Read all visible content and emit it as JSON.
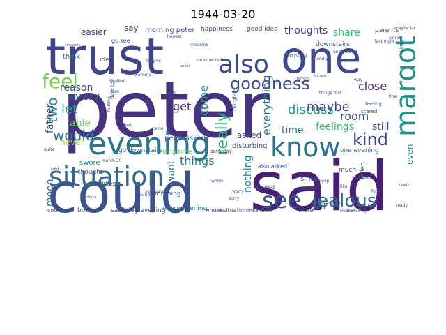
{
  "title": "1944-03-20",
  "words": [
    {
      "text": "peter",
      "color": "#46327e"
    },
    {
      "text": "said",
      "color": "#482173"
    },
    {
      "text": "could",
      "color": "#3b528b"
    },
    {
      "text": "trust",
      "color": "#414487"
    },
    {
      "text": "one",
      "color": "#3e4a89"
    },
    {
      "text": "evening",
      "color": "#2a788e"
    },
    {
      "text": "situation",
      "color": "#31688e"
    },
    {
      "text": "margot",
      "color": "#21918c"
    },
    {
      "text": "know",
      "color": "#2c728e"
    },
    {
      "text": "see",
      "color": "#3b528b"
    },
    {
      "text": "also",
      "color": "#3e4a89"
    },
    {
      "text": "jealous",
      "color": "#31688e"
    },
    {
      "text": "feel",
      "color": "#7ad151"
    },
    {
      "text": "goodness",
      "color": "#3e4a89"
    },
    {
      "text": "would",
      "color": "#2a788e"
    },
    {
      "text": "kind",
      "color": "#404688"
    },
    {
      "text": "discuss",
      "color": "#1f9e89"
    },
    {
      "text": "really",
      "color": "#2db27d"
    },
    {
      "text": "everything",
      "color": "#2a788e"
    },
    {
      "text": "maybe",
      "color": "#3e4a89"
    },
    {
      "text": "two",
      "color": "#21918c"
    },
    {
      "text": "share",
      "color": "#35b779"
    },
    {
      "text": "thoughts",
      "color": "#443983"
    },
    {
      "text": "room",
      "color": "#3b528b"
    },
    {
      "text": "let",
      "color": "#22a785"
    },
    {
      "text": "feelings",
      "color": "#35b779"
    },
    {
      "text": "things",
      "color": "#2a788e"
    },
    {
      "text": "far",
      "color": "#31688e"
    },
    {
      "text": "moon",
      "color": "#31688e"
    },
    {
      "text": "get",
      "color": "#46327e"
    },
    {
      "text": "every",
      "color": "#3b528b"
    },
    {
      "text": "reason",
      "color": "#3e4a89"
    },
    {
      "text": "close",
      "color": "#472d7b"
    },
    {
      "text": "still",
      "color": "#3b528b"
    },
    {
      "text": "time",
      "color": "#2c728e"
    },
    {
      "text": "able",
      "color": "#70cf57"
    },
    {
      "text": "come",
      "color": "#1f9e89"
    },
    {
      "text": "father",
      "color": "#3e4a89"
    },
    {
      "text": "asked",
      "color": "#3e4a89"
    },
    {
      "text": "nothing",
      "color": "#26828e"
    },
    {
      "text": "even",
      "color": "#21918c"
    },
    {
      "text": "want",
      "color": "#31688e"
    },
    {
      "text": "easier",
      "color": "#46327e"
    },
    {
      "text": "say",
      "color": "#3e4a89"
    },
    {
      "text": "never",
      "color": "#a0da39"
    },
    {
      "text": "morning peter",
      "color": "#3e4a89"
    },
    {
      "text": "peter asked",
      "color": "#3b528b"
    },
    {
      "text": "disturbing",
      "color": "#3b528b"
    },
    {
      "text": "go downstairs",
      "color": "#31688e"
    },
    {
      "text": "long time",
      "color": "#7ad151"
    },
    {
      "text": "thought",
      "color": "#3e4a89"
    },
    {
      "text": "swore",
      "color": "#26828e"
    },
    {
      "text": "morning",
      "color": "#3e4a89"
    },
    {
      "text": "bother",
      "color": "#3b528b"
    },
    {
      "text": "saturday evening",
      "color": "#414487"
    },
    {
      "text": "every evening",
      "color": "#2a788e"
    },
    {
      "text": "whole situation",
      "color": "#3e4a89"
    },
    {
      "text": "agreed",
      "color": "#3b528b"
    },
    {
      "text": "since",
      "color": "#3b528b"
    },
    {
      "text": "one evening",
      "color": "#2c728e"
    },
    {
      "text": "much",
      "color": "#3e4a89"
    },
    {
      "text": "likes",
      "color": "#3b528b"
    },
    {
      "text": "think",
      "color": "#31688e"
    },
    {
      "text": "idea",
      "color": "#3e4a89"
    },
    {
      "text": "good idea",
      "color": "#3b528b"
    },
    {
      "text": "downstairs",
      "color": "#3b528b"
    },
    {
      "text": "parents",
      "color": "#3e4a89"
    },
    {
      "text": "happiness",
      "color": "#3e4a89"
    },
    {
      "text": "could see",
      "color": "#3e4a89"
    },
    {
      "text": "go see",
      "color": "#3b528b"
    },
    {
      "text": "also asked",
      "color": "#3b528b"
    },
    {
      "text": "meantime",
      "color": "#3e4a89"
    },
    {
      "text": "there.",
      "color": "#3e4a89"
    },
    {
      "text": "shadow",
      "color": "#3b528b"
    },
    {
      "text": "saturday",
      "color": "#3b528b"
    },
    {
      "text": "fallen",
      "color": "#3b528b"
    },
    {
      "text": "feeling",
      "color": "#3b528b"
    },
    {
      "text": "scared",
      "color": "#3b528b"
    },
    {
      "text": "burglars",
      "color": "#3b528b"
    },
    {
      "text": "everything",
      "color": "#3b528b"
    },
    {
      "text": "unexpected",
      "color": "#3e4a89"
    },
    {
      "text": "replied",
      "color": "#3b528b"
    },
    {
      "text": "march 20",
      "color": "#3e4a89"
    },
    {
      "text": "sure",
      "color": "#3b528b"
    },
    {
      "text": "dare tell",
      "color": "#3b528b"
    },
    {
      "text": "warning",
      "color": "#3b528b"
    },
    {
      "text": "like",
      "color": "#3b528b"
    },
    {
      "text": "happen",
      "color": "#3b528b"
    },
    {
      "text": "hurting",
      "color": "#3b528b"
    },
    {
      "text": "whole",
      "color": "#3b528b"
    },
    {
      "text": "child",
      "color": "#3b528b"
    },
    {
      "text": "told",
      "color": "#3b528b"
    },
    {
      "text": "someone",
      "color": "#3b528b"
    },
    {
      "text": "mother",
      "color": "#3b528b"
    },
    {
      "text": "meaning",
      "color": "#3b528b"
    },
    {
      "text": "honest",
      "color": "#3b528b"
    },
    {
      "text": "simply",
      "color": "#3b528b"
    },
    {
      "text": "kindly",
      "color": "#3b528b"
    },
    {
      "text": "understand",
      "color": "#3b528b"
    },
    {
      "text": "friendly",
      "color": "#3b528b"
    },
    {
      "text": "forgive",
      "color": "#3b528b"
    },
    {
      "text": "worry",
      "color": "#3b528b"
    },
    {
      "text": "sorry",
      "color": "#3b528b"
    },
    {
      "text": "letter",
      "color": "#3b528b"
    },
    {
      "text": "believe",
      "color": "#3b528b"
    },
    {
      "text": "lost",
      "color": "#3b528b"
    },
    {
      "text": "came",
      "color": "#3b528b"
    },
    {
      "text": "way",
      "color": "#3b528b"
    },
    {
      "text": "keep",
      "color": "#3b528b"
    },
    {
      "text": "quite",
      "color": "#3b528b"
    },
    {
      "text": "fine",
      "color": "#3b528b"
    },
    {
      "text": "ready",
      "color": "#3b528b"
    },
    {
      "text": "found",
      "color": "#3b528b"
    },
    {
      "text": "fond",
      "color": "#3b528b"
    },
    {
      "text": "last night",
      "color": "#3b528b"
    },
    {
      "text": "without meaning",
      "color": "#3b528b"
    },
    {
      "text": "overflowing",
      "color": "#3b528b"
    },
    {
      "text": "maybe later",
      "color": "#3b528b"
    },
    {
      "text": "things first",
      "color": "#3b528b"
    },
    {
      "text": "beyond",
      "color": "#3b528b"
    },
    {
      "text": "future",
      "color": "#3b528b"
    },
    {
      "text": "plans",
      "color": "#3b528b"
    },
    {
      "text": "unfair",
      "color": "#3b528b"
    },
    {
      "text": "ready",
      "color": "#3b528b"
    },
    {
      "text": "perhaps",
      "color": "#3b528b"
    },
    {
      "text": "sincerely",
      "color": "#3b528b"
    },
    {
      "text": "forgotten",
      "color": "#3b528b"
    }
  ]
}
